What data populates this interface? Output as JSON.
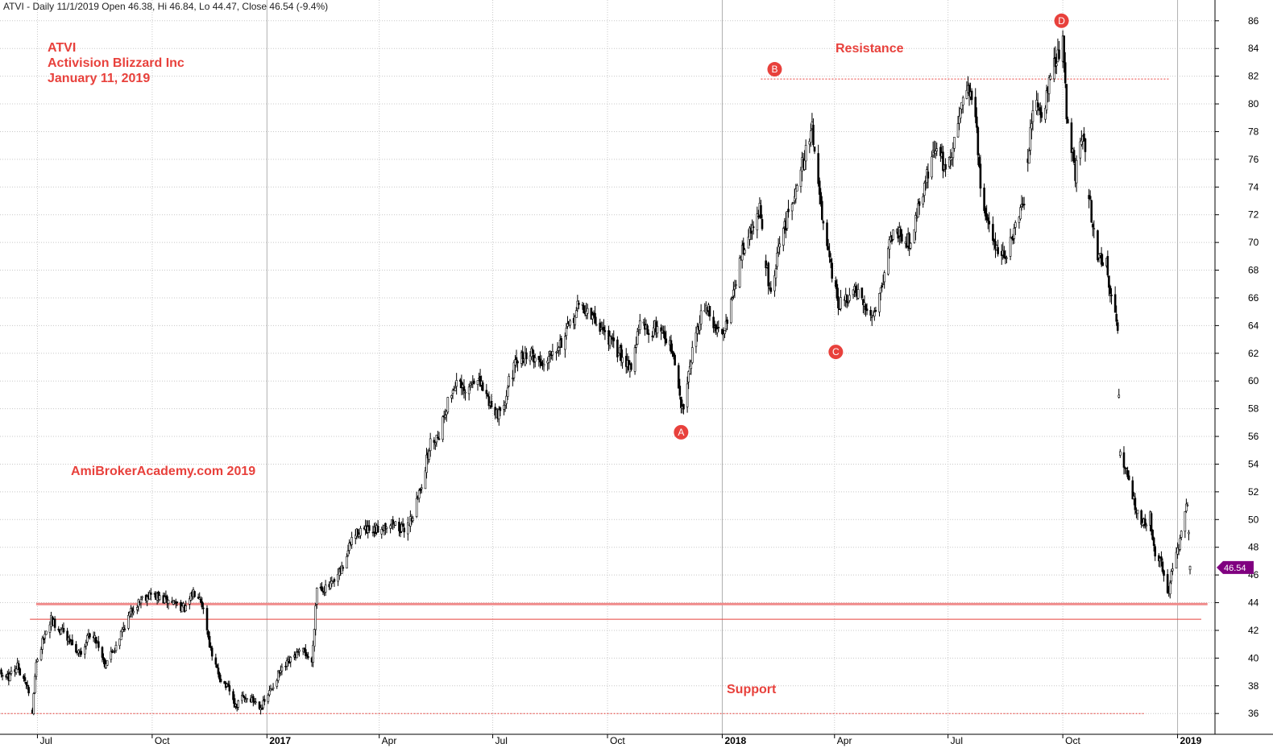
{
  "header": "ATVI - Daily 11/1/2019 Open 46.38, Hi 46.84, Lo 44.47, Close 46.54 (-9.4%)",
  "annotations": {
    "ticker": "ATVI",
    "company": "Activision Blizzard Inc",
    "date": "January 11, 2019",
    "watermark": "AmiBrokerAcademy.com  2019",
    "resistance_label": "Resistance",
    "support_label": "Support"
  },
  "price_badge": "46.54",
  "colors": {
    "annotation": "#e8413c",
    "badge": "#800080",
    "candle": "#000000",
    "grid": "#c8c8c8"
  },
  "chart_data": {
    "type": "candlestick",
    "ylim": [
      34.5,
      87.5
    ],
    "yticks": [
      36,
      38,
      40,
      42,
      44,
      46,
      48,
      50,
      52,
      54,
      56,
      58,
      60,
      62,
      64,
      66,
      68,
      70,
      72,
      74,
      76,
      78,
      80,
      82,
      84,
      86
    ],
    "x_axis": {
      "start": "2016-06-01",
      "end": "2019-01-31",
      "ticks": [
        {
          "label": "Jul",
          "date": "2016-07-01",
          "bold": false
        },
        {
          "label": "Oct",
          "date": "2016-10-01",
          "bold": false
        },
        {
          "label": "2017",
          "date": "2017-01-01",
          "bold": true
        },
        {
          "label": "Apr",
          "date": "2017-04-01",
          "bold": false
        },
        {
          "label": "Jul",
          "date": "2017-07-01",
          "bold": false
        },
        {
          "label": "Oct",
          "date": "2017-10-01",
          "bold": false
        },
        {
          "label": "2018",
          "date": "2018-01-01",
          "bold": true
        },
        {
          "label": "Apr",
          "date": "2018-04-01",
          "bold": false
        },
        {
          "label": "Jul",
          "date": "2018-07-01",
          "bold": false
        },
        {
          "label": "Oct",
          "date": "2018-10-01",
          "bold": false
        },
        {
          "label": "2019",
          "date": "2019-01-01",
          "bold": true
        }
      ]
    },
    "price_path": [
      [
        "2016-06-01",
        39.0
      ],
      [
        "2016-06-08",
        38.6
      ],
      [
        "2016-06-15",
        39.4
      ],
      [
        "2016-06-22",
        38.2
      ],
      [
        "2016-06-27",
        36.2
      ],
      [
        "2016-06-30",
        39.5
      ],
      [
        "2016-07-06",
        41.5
      ],
      [
        "2016-07-12",
        42.8
      ],
      [
        "2016-07-20",
        42.0
      ],
      [
        "2016-07-28",
        41.0
      ],
      [
        "2016-08-04",
        40.2
      ],
      [
        "2016-08-12",
        41.8
      ],
      [
        "2016-08-18",
        41.2
      ],
      [
        "2016-08-24",
        39.6
      ],
      [
        "2016-08-31",
        40.6
      ],
      [
        "2016-09-08",
        42.2
      ],
      [
        "2016-09-15",
        43.5
      ],
      [
        "2016-09-23",
        44.4
      ],
      [
        "2016-09-30",
        44.6
      ],
      [
        "2016-10-10",
        44.2
      ],
      [
        "2016-10-20",
        44.0
      ],
      [
        "2016-10-28",
        43.5
      ],
      [
        "2016-11-03",
        44.8
      ],
      [
        "2016-11-08",
        44.6
      ],
      [
        "2016-11-12",
        43.2
      ],
      [
        "2016-11-18",
        40.0
      ],
      [
        "2016-11-25",
        38.5
      ],
      [
        "2016-12-02",
        37.6
      ],
      [
        "2016-12-07",
        36.4
      ],
      [
        "2016-12-12",
        37.2
      ],
      [
        "2016-12-20",
        37.0
      ],
      [
        "2016-12-28",
        36.5
      ],
      [
        "2017-01-03",
        37.5
      ],
      [
        "2017-01-10",
        38.8
      ],
      [
        "2017-01-17",
        39.5
      ],
      [
        "2017-01-24",
        40.2
      ],
      [
        "2017-01-31",
        40.5
      ],
      [
        "2017-02-06",
        39.6
      ],
      [
        "2017-02-10",
        45.2
      ],
      [
        "2017-02-17",
        45.0
      ],
      [
        "2017-02-24",
        45.4
      ],
      [
        "2017-03-03",
        46.6
      ],
      [
        "2017-03-10",
        48.6
      ],
      [
        "2017-03-17",
        49.3
      ],
      [
        "2017-03-27",
        49.0
      ],
      [
        "2017-04-03",
        49.5
      ],
      [
        "2017-04-12",
        49.8
      ],
      [
        "2017-04-20",
        49.2
      ],
      [
        "2017-04-28",
        50.3
      ],
      [
        "2017-05-05",
        52.6
      ],
      [
        "2017-05-12",
        55.5
      ],
      [
        "2017-05-19",
        56.2
      ],
      [
        "2017-05-26",
        58.5
      ],
      [
        "2017-06-02",
        60.0
      ],
      [
        "2017-06-09",
        59.0
      ],
      [
        "2017-06-16",
        60.2
      ],
      [
        "2017-06-23",
        59.5
      ],
      [
        "2017-06-30",
        58.2
      ],
      [
        "2017-07-07",
        57.5
      ],
      [
        "2017-07-14",
        60.0
      ],
      [
        "2017-07-21",
        61.5
      ],
      [
        "2017-07-31",
        62.0
      ],
      [
        "2017-08-10",
        61.2
      ],
      [
        "2017-08-18",
        62.4
      ],
      [
        "2017-08-25",
        62.8
      ],
      [
        "2017-09-01",
        64.0
      ],
      [
        "2017-09-08",
        65.5
      ],
      [
        "2017-09-15",
        65.0
      ],
      [
        "2017-09-22",
        64.2
      ],
      [
        "2017-09-29",
        63.5
      ],
      [
        "2017-10-06",
        62.5
      ],
      [
        "2017-10-13",
        61.8
      ],
      [
        "2017-10-20",
        61.0
      ],
      [
        "2017-10-27",
        64.2
      ],
      [
        "2017-11-03",
        63.5
      ],
      [
        "2017-11-10",
        64.0
      ],
      [
        "2017-11-17",
        63.2
      ],
      [
        "2017-11-22",
        62.0
      ],
      [
        "2017-11-27",
        59.5
      ],
      [
        "2017-11-30",
        57.8
      ],
      [
        "2017-12-05",
        60.8
      ],
      [
        "2017-12-12",
        64.0
      ],
      [
        "2017-12-19",
        65.5
      ],
      [
        "2017-12-27",
        63.5
      ],
      [
        "2018-01-03",
        64.0
      ],
      [
        "2018-01-10",
        66.2
      ],
      [
        "2018-01-17",
        69.5
      ],
      [
        "2018-01-24",
        70.8
      ],
      [
        "2018-01-31",
        72.4
      ],
      [
        "2018-02-05",
        68.5
      ],
      [
        "2018-02-09",
        66.0
      ],
      [
        "2018-02-16",
        70.0
      ],
      [
        "2018-02-23",
        72.0
      ],
      [
        "2018-03-02",
        74.5
      ],
      [
        "2018-03-09",
        76.5
      ],
      [
        "2018-03-14",
        78.5
      ],
      [
        "2018-03-19",
        74.0
      ],
      [
        "2018-03-23",
        71.0
      ],
      [
        "2018-03-28",
        68.5
      ],
      [
        "2018-04-04",
        65.5
      ],
      [
        "2018-04-11",
        65.8
      ],
      [
        "2018-04-18",
        66.5
      ],
      [
        "2018-04-25",
        65.2
      ],
      [
        "2018-05-02",
        64.8
      ],
      [
        "2018-05-09",
        67.0
      ],
      [
        "2018-05-16",
        70.5
      ],
      [
        "2018-05-23",
        70.8
      ],
      [
        "2018-05-31",
        70.0
      ],
      [
        "2018-06-07",
        72.5
      ],
      [
        "2018-06-14",
        74.8
      ],
      [
        "2018-06-21",
        77.0
      ],
      [
        "2018-06-28",
        75.5
      ],
      [
        "2018-07-05",
        76.5
      ],
      [
        "2018-07-12",
        80.5
      ],
      [
        "2018-07-17",
        81.2
      ],
      [
        "2018-07-23",
        79.5
      ],
      [
        "2018-07-27",
        73.5
      ],
      [
        "2018-08-03",
        71.0
      ],
      [
        "2018-08-10",
        69.5
      ],
      [
        "2018-08-17",
        69.0
      ],
      [
        "2018-08-24",
        71.0
      ],
      [
        "2018-08-31",
        72.8
      ],
      [
        "2018-09-05",
        78.0
      ],
      [
        "2018-09-10",
        80.5
      ],
      [
        "2018-09-14",
        79.0
      ],
      [
        "2018-09-19",
        81.0
      ],
      [
        "2018-09-26",
        83.5
      ],
      [
        "2018-10-01",
        84.3
      ],
      [
        "2018-10-04",
        79.5
      ],
      [
        "2018-10-08",
        77.0
      ],
      [
        "2018-10-11",
        75.0
      ],
      [
        "2018-10-15",
        77.5
      ],
      [
        "2018-10-18",
        77.0
      ],
      [
        "2018-10-24",
        72.0
      ],
      [
        "2018-10-29",
        69.0
      ],
      [
        "2018-11-05",
        68.5
      ],
      [
        "2018-11-09",
        66.0
      ],
      [
        "2018-11-12",
        64.5
      ],
      [
        "2018-11-14",
        63.2
      ],
      [
        "2018-11-16",
        54.8
      ],
      [
        "2018-11-21",
        53.5
      ],
      [
        "2018-11-28",
        51.0
      ],
      [
        "2018-12-04",
        49.6
      ],
      [
        "2018-12-10",
        50.2
      ],
      [
        "2018-12-14",
        47.5
      ],
      [
        "2018-12-19",
        47.0
      ],
      [
        "2018-12-24",
        44.5
      ],
      [
        "2018-12-27",
        46.0
      ],
      [
        "2019-01-02",
        48.0
      ],
      [
        "2019-01-07",
        50.5
      ],
      [
        "2019-01-09",
        51.2
      ],
      [
        "2019-01-11",
        46.54
      ]
    ],
    "support_resistance": [
      {
        "kind": "dotted",
        "from": "2016-06-02",
        "to": "2018-12-06",
        "y": 36.0
      },
      {
        "kind": "dotted",
        "from": "2018-02-01",
        "to": "2018-12-26",
        "y": 81.8
      },
      {
        "kind": "thick",
        "from": "2016-06-30",
        "to": "2019-01-25",
        "y": 43.9
      },
      {
        "kind": "thin",
        "from": "2016-06-25",
        "to": "2019-01-20",
        "y": 42.8
      }
    ],
    "points": [
      {
        "label": "A",
        "date": "2017-11-29",
        "y": 56.3
      },
      {
        "label": "B",
        "date": "2018-02-12",
        "y": 82.5
      },
      {
        "label": "C",
        "date": "2018-04-02",
        "y": 62.1
      },
      {
        "label": "D",
        "date": "2018-09-30",
        "y": 86.0
      }
    ]
  }
}
